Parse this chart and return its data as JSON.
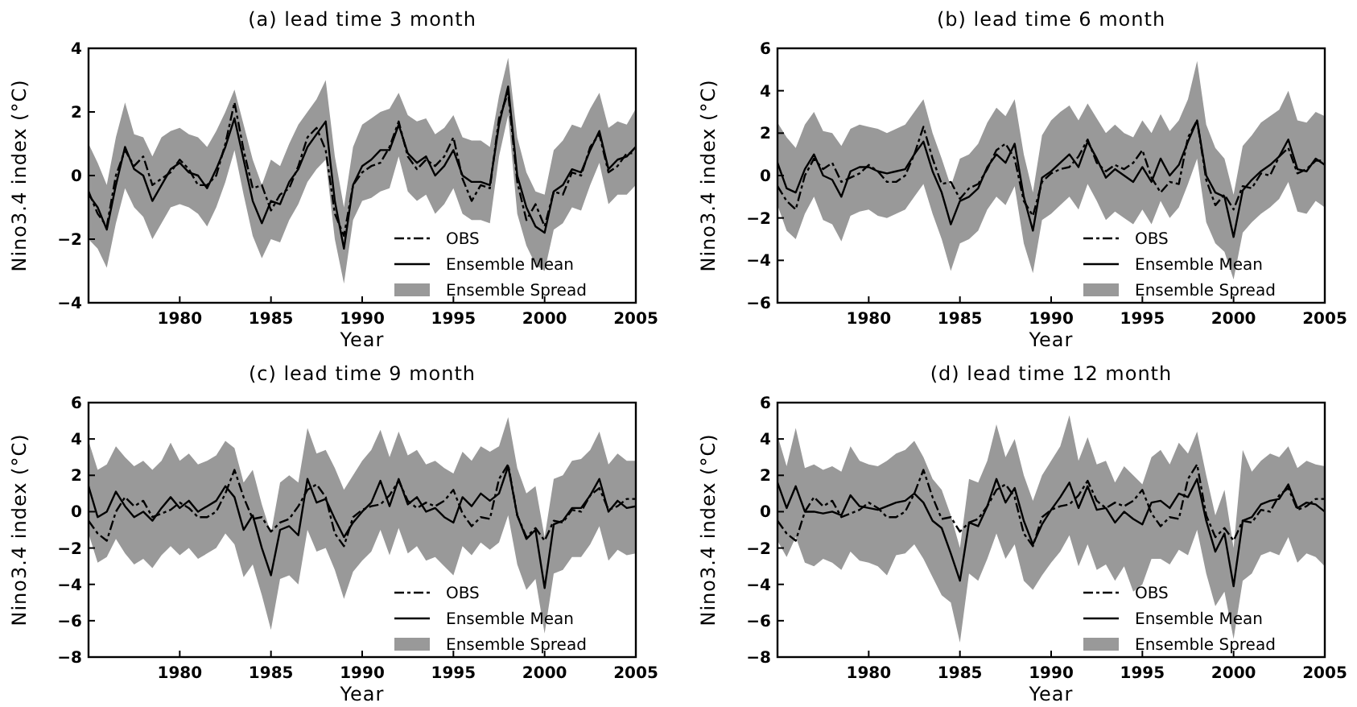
{
  "chart_data": [
    {
      "type": "line",
      "title": "(a) lead time 3 month",
      "xlabel": "Year",
      "ylabel": "Nino3.4 index (°C)",
      "legend": "bottom right",
      "annotations": [
        "Ensemble Spread"
      ],
      "xlim": [
        1975,
        2005
      ],
      "xticks": [
        1980,
        1985,
        1990,
        1995,
        2000,
        2005
      ],
      "ylim": [
        -4,
        4
      ],
      "yticks": [
        -4,
        -2,
        0,
        2,
        4
      ],
      "x": [
        1975,
        1975.5,
        1976,
        1976.5,
        1977,
        1977.5,
        1978,
        1978.5,
        1979,
        1979.5,
        1980,
        1980.5,
        1981,
        1981.5,
        1982,
        1982.5,
        1983,
        1983.5,
        1984,
        1984.5,
        1985,
        1985.5,
        1986,
        1986.5,
        1987,
        1987.5,
        1988,
        1988.5,
        1989,
        1989.5,
        1990,
        1990.5,
        1991,
        1991.5,
        1992,
        1992.5,
        1993,
        1993.5,
        1994,
        1994.5,
        1995,
        1995.5,
        1996,
        1996.5,
        1997,
        1997.5,
        1998,
        1998.5,
        1999,
        1999.5,
        2000,
        2000.5,
        2001,
        2001.5,
        2002,
        2002.5,
        2003,
        2003.5,
        2004,
        2004.5,
        2005
      ],
      "series": [
        {
          "name": "OBS",
          "type": "line",
          "color": "#000000",
          "line_style": "dashed",
          "values": [
            -0.5,
            -1.2,
            -1.6,
            0.0,
            0.8,
            0.3,
            0.6,
            -0.3,
            -0.1,
            0.1,
            0.5,
            0.2,
            -0.3,
            -0.3,
            0.0,
            1.0,
            2.3,
            0.8,
            -0.4,
            -0.3,
            -1.1,
            -0.6,
            -0.4,
            0.3,
            1.2,
            1.5,
            0.8,
            -1.2,
            -1.9,
            -0.3,
            0.1,
            0.3,
            0.4,
            0.9,
            1.7,
            0.6,
            0.2,
            0.5,
            0.3,
            0.6,
            1.2,
            -0.1,
            -0.8,
            -0.3,
            -0.4,
            1.8,
            2.6,
            -0.2,
            -1.4,
            -0.9,
            -1.6,
            -0.5,
            -0.6,
            0.1,
            0.0,
            0.9,
            1.3,
            0.1,
            0.3,
            0.7,
            0.7
          ]
        },
        {
          "name": "Ensemble Mean",
          "type": "line",
          "color": "#000000",
          "line_style": "solid",
          "values": [
            -0.6,
            -1.0,
            -1.7,
            -0.3,
            0.9,
            0.2,
            0.0,
            -0.8,
            -0.3,
            0.2,
            0.4,
            0.1,
            0.0,
            -0.4,
            0.2,
            0.9,
            1.8,
            0.5,
            -0.8,
            -1.5,
            -0.8,
            -0.9,
            -0.2,
            0.2,
            0.9,
            1.3,
            1.7,
            -0.8,
            -2.3,
            -0.3,
            0.3,
            0.5,
            0.8,
            0.8,
            1.6,
            0.7,
            0.4,
            0.6,
            0.0,
            0.3,
            0.8,
            0.0,
            -0.2,
            -0.2,
            -0.3,
            1.6,
            2.8,
            0.0,
            -1.0,
            -1.6,
            -1.8,
            -0.5,
            -0.3,
            0.2,
            0.1,
            0.8,
            1.4,
            0.2,
            0.5,
            0.6,
            0.9
          ],
          "upper": [
            1.0,
            0.4,
            -0.3,
            1.2,
            2.3,
            1.3,
            1.2,
            0.6,
            1.2,
            1.4,
            1.5,
            1.3,
            1.2,
            0.9,
            1.4,
            2.0,
            2.7,
            1.6,
            0.5,
            -0.3,
            0.5,
            0.3,
            1.0,
            1.6,
            2.0,
            2.4,
            3.0,
            0.6,
            -1.0,
            0.9,
            1.6,
            1.8,
            2.0,
            2.1,
            2.6,
            1.9,
            1.7,
            1.8,
            1.3,
            1.5,
            1.9,
            1.2,
            1.1,
            1.1,
            0.9,
            2.5,
            3.7,
            1.2,
            0.1,
            -0.5,
            -0.6,
            0.8,
            1.1,
            1.6,
            1.5,
            2.1,
            2.6,
            1.5,
            1.7,
            1.6,
            2.1
          ],
          "lower": [
            -2.0,
            -2.3,
            -2.9,
            -1.5,
            -0.4,
            -1.0,
            -1.3,
            -2.0,
            -1.5,
            -1.0,
            -0.9,
            -1.0,
            -1.2,
            -1.6,
            -1.0,
            -0.2,
            0.8,
            -0.6,
            -1.9,
            -2.6,
            -2.0,
            -2.1,
            -1.4,
            -0.9,
            -0.2,
            0.2,
            0.5,
            -2.0,
            -3.4,
            -1.4,
            -0.8,
            -0.7,
            -0.5,
            -0.4,
            0.6,
            -0.5,
            -0.8,
            -0.6,
            -1.2,
            -0.9,
            -0.4,
            -1.2,
            -1.4,
            -1.4,
            -1.5,
            0.6,
            1.9,
            -1.2,
            -2.2,
            -2.8,
            -3.0,
            -1.7,
            -1.5,
            -1.0,
            -1.1,
            -0.3,
            0.4,
            -0.9,
            -0.6,
            -0.6,
            -0.3
          ]
        }
      ]
    },
    {
      "type": "line",
      "title": "(b) lead time 6 month",
      "xlabel": "Year",
      "ylabel": "Nino3.4 index (°C)",
      "legend": "bottom right",
      "annotations": [
        "Ensemble Spread"
      ],
      "xlim": [
        1975,
        2005
      ],
      "xticks": [
        1980,
        1985,
        1990,
        1995,
        2000,
        2005
      ],
      "ylim": [
        -6,
        6
      ],
      "yticks": [
        -6,
        -4,
        -2,
        0,
        2,
        4,
        6
      ],
      "x": [
        1975,
        1975.5,
        1976,
        1976.5,
        1977,
        1977.5,
        1978,
        1978.5,
        1979,
        1979.5,
        1980,
        1980.5,
        1981,
        1981.5,
        1982,
        1982.5,
        1983,
        1983.5,
        1984,
        1984.5,
        1985,
        1985.5,
        1986,
        1986.5,
        1987,
        1987.5,
        1988,
        1988.5,
        1989,
        1989.5,
        1990,
        1990.5,
        1991,
        1991.5,
        1992,
        1992.5,
        1993,
        1993.5,
        1994,
        1994.5,
        1995,
        1995.5,
        1996,
        1996.5,
        1997,
        1997.5,
        1998,
        1998.5,
        1999,
        1999.5,
        2000,
        2000.5,
        2001,
        2001.5,
        2002,
        2002.5,
        2003,
        2003.5,
        2004,
        2004.5,
        2005
      ],
      "series": [
        {
          "name": "OBS",
          "type": "line",
          "color": "#000000",
          "line_style": "dashed",
          "values": [
            -0.5,
            -1.2,
            -1.6,
            0.0,
            0.8,
            0.3,
            0.6,
            -0.3,
            -0.1,
            0.1,
            0.5,
            0.2,
            -0.3,
            -0.3,
            0.0,
            1.0,
            2.3,
            0.8,
            -0.4,
            -0.3,
            -1.1,
            -0.6,
            -0.4,
            0.3,
            1.2,
            1.5,
            0.8,
            -1.2,
            -1.9,
            -0.3,
            0.1,
            0.3,
            0.4,
            0.9,
            1.7,
            0.6,
            0.2,
            0.5,
            0.3,
            0.6,
            1.2,
            -0.1,
            -0.8,
            -0.3,
            -0.4,
            1.8,
            2.6,
            -0.2,
            -1.4,
            -0.9,
            -1.6,
            -0.5,
            -0.6,
            0.1,
            0.0,
            0.9,
            1.3,
            0.1,
            0.3,
            0.7,
            0.7
          ]
        },
        {
          "name": "Ensemble Mean",
          "type": "line",
          "color": "#000000",
          "line_style": "solid",
          "values": [
            0.6,
            -0.6,
            -0.8,
            0.3,
            1.0,
            0.0,
            -0.2,
            -1.0,
            0.2,
            0.4,
            0.4,
            0.2,
            0.1,
            0.2,
            0.3,
            1.0,
            1.6,
            0.2,
            -0.8,
            -2.3,
            -1.2,
            -1.0,
            -0.6,
            0.4,
            1.0,
            0.6,
            1.5,
            -1.0,
            -2.6,
            -0.1,
            0.2,
            0.6,
            1.0,
            0.4,
            1.6,
            0.8,
            -0.1,
            0.3,
            0.0,
            -0.3,
            0.4,
            -0.3,
            0.8,
            0.0,
            0.5,
            1.6,
            2.6,
            0.0,
            -0.8,
            -1.0,
            -2.9,
            -0.7,
            -0.2,
            0.2,
            0.5,
            0.9,
            1.7,
            0.3,
            0.2,
            0.8,
            0.5
          ],
          "upper": [
            2.5,
            1.8,
            1.3,
            2.4,
            3.0,
            2.1,
            2.0,
            1.4,
            2.2,
            2.4,
            2.3,
            2.2,
            2.0,
            2.2,
            2.4,
            3.0,
            3.6,
            2.0,
            0.8,
            -0.5,
            0.8,
            1.0,
            1.5,
            2.5,
            3.2,
            2.8,
            3.6,
            1.0,
            -0.8,
            1.9,
            2.6,
            3.0,
            3.3,
            2.6,
            3.4,
            2.7,
            2.0,
            2.4,
            2.0,
            1.8,
            2.6,
            2.0,
            2.9,
            2.1,
            2.6,
            3.6,
            5.4,
            2.4,
            1.3,
            0.8,
            -0.9,
            1.4,
            1.9,
            2.5,
            2.8,
            3.1,
            4.0,
            2.6,
            2.5,
            3.0,
            2.8
          ],
          "lower": [
            -1.4,
            -2.6,
            -3.0,
            -1.8,
            -1.0,
            -2.1,
            -2.3,
            -3.1,
            -1.9,
            -1.7,
            -1.6,
            -1.9,
            -2.0,
            -1.8,
            -1.6,
            -1.0,
            -0.4,
            -1.8,
            -3.0,
            -4.5,
            -3.2,
            -3.0,
            -2.6,
            -1.6,
            -1.0,
            -1.4,
            -0.5,
            -3.2,
            -4.6,
            -2.1,
            -1.8,
            -1.4,
            -1.0,
            -1.6,
            -0.4,
            -1.2,
            -2.1,
            -1.7,
            -2.0,
            -2.3,
            -1.6,
            -2.3,
            -1.2,
            -2.0,
            -1.5,
            -0.4,
            0.8,
            -2.2,
            -3.2,
            -3.6,
            -4.9,
            -2.7,
            -2.2,
            -1.8,
            -1.5,
            -1.1,
            -0.3,
            -1.7,
            -1.8,
            -1.2,
            -1.5
          ]
        }
      ]
    },
    {
      "type": "line",
      "title": "(c) lead time 9 month",
      "xlabel": "Year",
      "ylabel": "Nino3.4 index (°C)",
      "legend": "bottom right",
      "annotations": [
        "Ensemble Spread"
      ],
      "xlim": [
        1975,
        2005
      ],
      "xticks": [
        1980,
        1985,
        1990,
        1995,
        2000,
        2005
      ],
      "ylim": [
        -8,
        6
      ],
      "yticks": [
        -8,
        -6,
        -4,
        -2,
        0,
        2,
        4,
        6
      ],
      "x": [
        1975,
        1975.5,
        1976,
        1976.5,
        1977,
        1977.5,
        1978,
        1978.5,
        1979,
        1979.5,
        1980,
        1980.5,
        1981,
        1981.5,
        1982,
        1982.5,
        1983,
        1983.5,
        1984,
        1984.5,
        1985,
        1985.5,
        1986,
        1986.5,
        1987,
        1987.5,
        1988,
        1988.5,
        1989,
        1989.5,
        1990,
        1990.5,
        1991,
        1991.5,
        1992,
        1992.5,
        1993,
        1993.5,
        1994,
        1994.5,
        1995,
        1995.5,
        1996,
        1996.5,
        1997,
        1997.5,
        1998,
        1998.5,
        1999,
        1999.5,
        2000,
        2000.5,
        2001,
        2001.5,
        2002,
        2002.5,
        2003,
        2003.5,
        2004,
        2004.5,
        2005
      ],
      "series": [
        {
          "name": "OBS",
          "type": "line",
          "color": "#000000",
          "line_style": "dashed",
          "values": [
            -0.5,
            -1.2,
            -1.6,
            0.0,
            0.8,
            0.3,
            0.6,
            -0.3,
            -0.1,
            0.1,
            0.5,
            0.2,
            -0.3,
            -0.3,
            0.0,
            1.0,
            2.3,
            0.8,
            -0.4,
            -0.3,
            -1.1,
            -0.6,
            -0.4,
            0.3,
            1.2,
            1.5,
            0.8,
            -1.2,
            -1.9,
            -0.3,
            0.1,
            0.3,
            0.4,
            0.9,
            1.7,
            0.6,
            0.2,
            0.5,
            0.3,
            0.6,
            1.2,
            -0.1,
            -0.8,
            -0.3,
            -0.4,
            1.8,
            2.6,
            -0.2,
            -1.4,
            -0.9,
            -1.6,
            -0.5,
            -0.6,
            0.1,
            0.0,
            0.9,
            1.3,
            0.1,
            0.3,
            0.7,
            0.7
          ]
        },
        {
          "name": "Ensemble Mean",
          "type": "line",
          "color": "#000000",
          "line_style": "solid",
          "values": [
            1.4,
            -0.3,
            0.0,
            1.1,
            0.3,
            -0.3,
            0.0,
            -0.5,
            0.2,
            0.8,
            0.2,
            0.6,
            0.0,
            0.3,
            0.6,
            1.4,
            0.8,
            -1.0,
            -0.2,
            -2.0,
            -3.5,
            -1.0,
            -0.8,
            -1.3,
            1.8,
            0.5,
            0.7,
            -0.4,
            -1.4,
            -0.6,
            0.0,
            0.5,
            1.7,
            0.3,
            1.8,
            0.4,
            0.8,
            0.0,
            0.2,
            -0.3,
            -0.6,
            0.8,
            0.3,
            1.0,
            0.6,
            1.0,
            2.5,
            -0.2,
            -1.5,
            -1.0,
            -4.2,
            -0.7,
            -0.5,
            0.2,
            0.2,
            0.9,
            1.8,
            0.0,
            0.6,
            0.2,
            0.3
          ],
          "upper": [
            3.9,
            2.3,
            2.6,
            3.6,
            3.0,
            2.5,
            2.8,
            2.3,
            2.8,
            3.8,
            2.8,
            3.2,
            2.6,
            2.8,
            3.1,
            3.9,
            3.5,
            1.6,
            2.3,
            0.4,
            -1.2,
            1.6,
            2.0,
            1.6,
            4.6,
            3.2,
            3.4,
            2.4,
            1.2,
            2.0,
            2.8,
            3.4,
            4.5,
            3.0,
            4.4,
            3.1,
            3.4,
            2.6,
            2.8,
            2.4,
            2.1,
            3.3,
            2.8,
            3.6,
            3.3,
            3.6,
            5.2,
            2.4,
            1.0,
            1.4,
            -1.4,
            1.8,
            2.0,
            2.8,
            2.9,
            3.4,
            4.4,
            2.6,
            3.2,
            2.8,
            2.8
          ],
          "lower": [
            -1.2,
            -2.8,
            -2.5,
            -1.5,
            -2.3,
            -2.9,
            -2.6,
            -3.1,
            -2.4,
            -1.9,
            -2.4,
            -2.0,
            -2.6,
            -2.3,
            -2.0,
            -1.2,
            -1.8,
            -3.6,
            -2.9,
            -4.6,
            -6.5,
            -3.7,
            -3.5,
            -4.0,
            -1.0,
            -2.2,
            -2.0,
            -3.2,
            -4.8,
            -3.3,
            -2.7,
            -2.2,
            -1.0,
            -2.4,
            -0.9,
            -2.3,
            -1.9,
            -2.7,
            -2.5,
            -3.0,
            -3.5,
            -1.9,
            -2.4,
            -1.7,
            -2.1,
            -1.7,
            -0.2,
            -2.9,
            -4.3,
            -3.7,
            -6.7,
            -3.4,
            -3.2,
            -2.5,
            -2.5,
            -1.8,
            -0.8,
            -2.7,
            -2.1,
            -2.4,
            -2.3
          ]
        }
      ]
    },
    {
      "type": "line",
      "title": "(d) lead time 12 month",
      "xlabel": "Year",
      "ylabel": "Nino3.4 index (°C)",
      "legend": "bottom right",
      "annotations": [
        "Ensemble Spread"
      ],
      "xlim": [
        1975,
        2005
      ],
      "xticks": [
        1980,
        1985,
        1990,
        1995,
        2000,
        2005
      ],
      "ylim": [
        -8,
        6
      ],
      "yticks": [
        -8,
        -6,
        -4,
        -2,
        0,
        2,
        4,
        6
      ],
      "x": [
        1975,
        1975.5,
        1976,
        1976.5,
        1977,
        1977.5,
        1978,
        1978.5,
        1979,
        1979.5,
        1980,
        1980.5,
        1981,
        1981.5,
        1982,
        1982.5,
        1983,
        1983.5,
        1984,
        1984.5,
        1985,
        1985.5,
        1986,
        1986.5,
        1987,
        1987.5,
        1988,
        1988.5,
        1989,
        1989.5,
        1990,
        1990.5,
        1991,
        1991.5,
        1992,
        1992.5,
        1993,
        1993.5,
        1994,
        1994.5,
        1995,
        1995.5,
        1996,
        1996.5,
        1997,
        1997.5,
        1998,
        1998.5,
        1999,
        1999.5,
        2000,
        2000.5,
        2001,
        2001.5,
        2002,
        2002.5,
        2003,
        2003.5,
        2004,
        2004.5,
        2005
      ],
      "series": [
        {
          "name": "OBS",
          "type": "line",
          "color": "#000000",
          "line_style": "dashed",
          "values": [
            -0.5,
            -1.2,
            -1.6,
            0.0,
            0.8,
            0.3,
            0.6,
            -0.3,
            -0.1,
            0.1,
            0.5,
            0.2,
            -0.3,
            -0.3,
            0.0,
            1.0,
            2.3,
            0.8,
            -0.4,
            -0.3,
            -1.1,
            -0.6,
            -0.4,
            0.3,
            1.2,
            1.5,
            0.8,
            -1.2,
            -1.9,
            -0.3,
            0.1,
            0.3,
            0.4,
            0.9,
            1.7,
            0.6,
            0.2,
            0.5,
            0.3,
            0.6,
            1.2,
            -0.1,
            -0.8,
            -0.3,
            -0.4,
            1.8,
            2.6,
            -0.2,
            -1.4,
            -0.9,
            -1.6,
            -0.5,
            -0.6,
            0.1,
            0.0,
            0.9,
            1.3,
            0.1,
            0.3,
            0.7,
            0.7
          ]
        },
        {
          "name": "Ensemble Mean",
          "type": "line",
          "color": "#000000",
          "line_style": "solid",
          "values": [
            1.6,
            0.2,
            1.4,
            0.0,
            0.0,
            -0.1,
            0.0,
            -0.2,
            0.9,
            0.3,
            0.2,
            0.1,
            0.3,
            0.5,
            0.6,
            1.0,
            0.5,
            -0.5,
            -0.9,
            -2.3,
            -3.8,
            -0.6,
            -0.8,
            0.3,
            1.8,
            0.5,
            1.3,
            -0.5,
            -1.8,
            -0.7,
            0.1,
            0.8,
            1.6,
            0.2,
            1.4,
            0.1,
            0.2,
            -0.6,
            0.0,
            -0.4,
            -0.7,
            0.5,
            0.6,
            0.2,
            1.0,
            0.8,
            1.8,
            -0.5,
            -2.2,
            -1.2,
            -4.1,
            -0.5,
            -0.3,
            0.4,
            0.6,
            0.7,
            1.5,
            0.2,
            0.5,
            0.4,
            0.0
          ],
          "upper": [
            4.2,
            2.5,
            4.6,
            2.4,
            2.6,
            2.3,
            2.5,
            2.2,
            3.6,
            2.8,
            2.6,
            2.5,
            2.8,
            3.2,
            3.4,
            3.9,
            3.0,
            1.8,
            1.2,
            -0.2,
            -2.0,
            1.8,
            1.6,
            2.8,
            4.8,
            3.0,
            4.0,
            2.0,
            0.6,
            2.0,
            2.8,
            3.6,
            5.3,
            2.8,
            4.1,
            2.6,
            2.8,
            1.6,
            2.5,
            2.0,
            1.5,
            3.0,
            3.4,
            2.6,
            3.8,
            3.2,
            4.4,
            2.0,
            -0.2,
            1.2,
            -2.0,
            3.4,
            2.2,
            2.8,
            3.2,
            3.0,
            3.6,
            2.4,
            2.8,
            2.6,
            2.5
          ],
          "lower": [
            -1.6,
            -2.5,
            -1.4,
            -2.8,
            -3.0,
            -2.6,
            -2.8,
            -3.2,
            -2.2,
            -2.7,
            -2.8,
            -3.0,
            -3.5,
            -2.4,
            -2.3,
            -1.8,
            -2.6,
            -3.6,
            -4.6,
            -5.0,
            -7.2,
            -3.4,
            -3.8,
            -2.6,
            -1.2,
            -2.6,
            -1.8,
            -3.8,
            -4.3,
            -3.5,
            -2.8,
            -2.2,
            -1.3,
            -3.0,
            -1.8,
            -3.2,
            -2.9,
            -3.8,
            -3.0,
            -4.4,
            -4.0,
            -2.6,
            -2.6,
            -2.9,
            -2.1,
            -2.4,
            -1.0,
            -3.4,
            -5.2,
            -4.4,
            -7.0,
            -3.8,
            -3.4,
            -2.4,
            -2.2,
            -2.4,
            -1.4,
            -2.8,
            -2.3,
            -2.5,
            -3.0
          ]
        }
      ]
    }
  ]
}
